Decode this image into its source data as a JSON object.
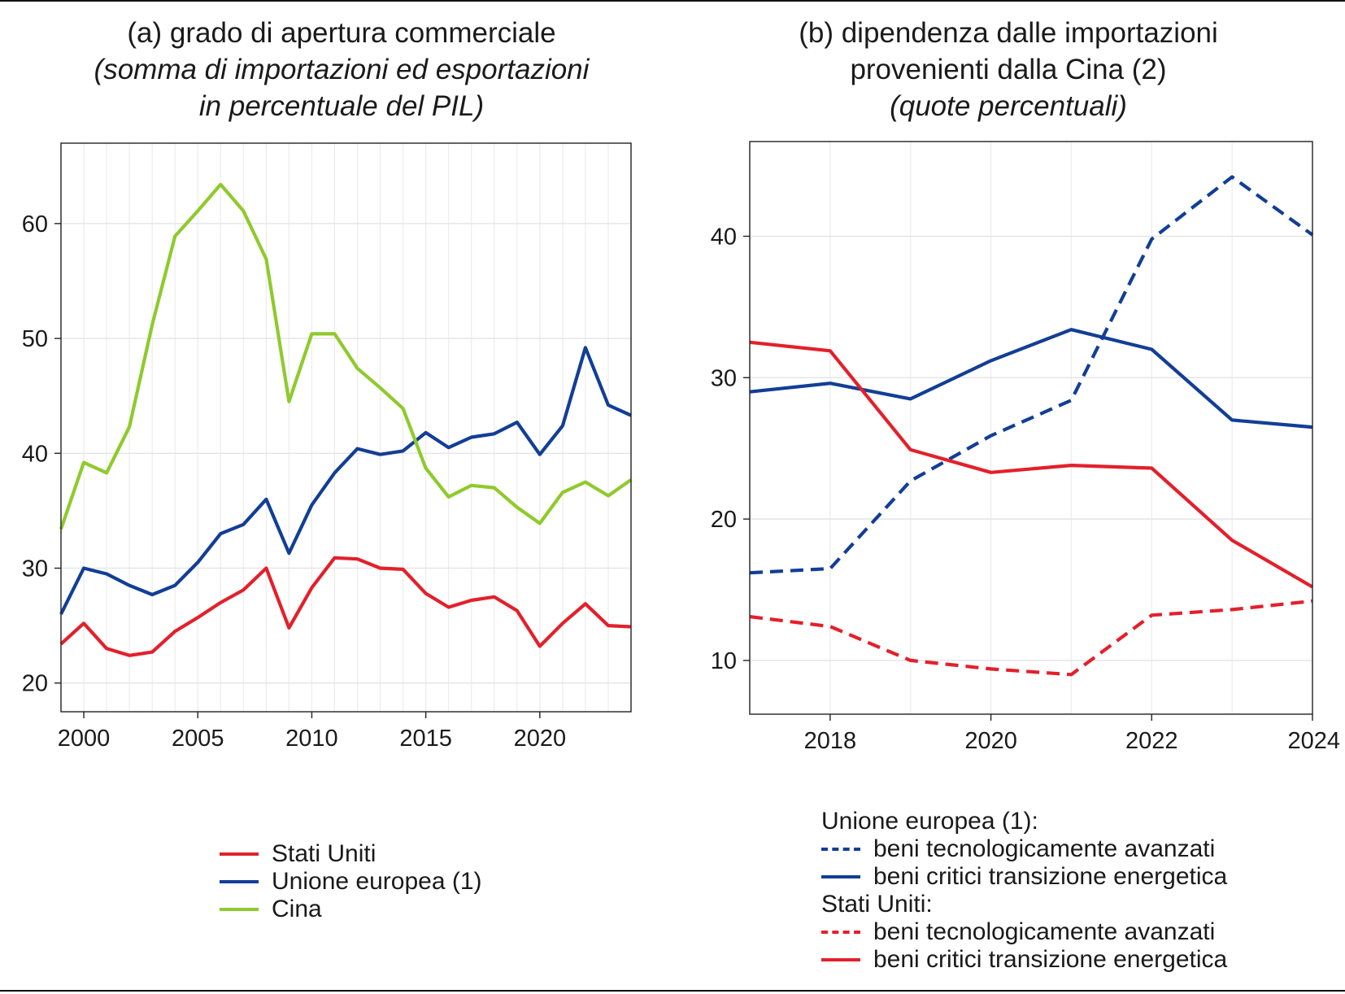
{
  "chart_data": [
    {
      "type": "line",
      "title": "(a) grado di apertura commerciale",
      "subtitle": "(somma di importazioni ed esportazioni in percentuale del PIL)",
      "xlabel": "",
      "ylabel": "",
      "xlim": [
        1999,
        2024
      ],
      "ylim": [
        17.5,
        67
      ],
      "xticks": [
        2000,
        2005,
        2010,
        2015,
        2020
      ],
      "yticks": [
        20,
        30,
        40,
        50,
        60
      ],
      "grid": true,
      "x": [
        1999,
        2000,
        2001,
        2002,
        2003,
        2004,
        2005,
        2006,
        2007,
        2008,
        2009,
        2010,
        2011,
        2012,
        2013,
        2014,
        2015,
        2016,
        2017,
        2018,
        2019,
        2020,
        2021,
        2022,
        2023,
        2024
      ],
      "series": [
        {
          "name": "Stati Uniti",
          "color": "#e3202b",
          "dash": "solid",
          "values": [
            23.4,
            25.2,
            23.0,
            22.4,
            22.7,
            24.5,
            25.7,
            27.0,
            28.1,
            30.0,
            24.8,
            28.3,
            30.9,
            30.8,
            30.0,
            29.9,
            27.8,
            26.6,
            27.2,
            27.5,
            26.3,
            23.2,
            25.2,
            26.9,
            25.0,
            24.9
          ]
        },
        {
          "name": "Unione europea (1)",
          "color": "#123e96",
          "dash": "solid",
          "values": [
            26.0,
            30.0,
            29.5,
            28.5,
            27.7,
            28.5,
            30.5,
            33.0,
            33.8,
            36.0,
            31.3,
            35.5,
            38.3,
            40.4,
            39.9,
            40.2,
            41.8,
            40.5,
            41.4,
            41.7,
            42.7,
            39.9,
            42.4,
            49.2,
            44.2,
            43.3
          ]
        },
        {
          "name": "Cina",
          "color": "#8fca2c",
          "dash": "solid",
          "values": [
            33.4,
            39.2,
            38.3,
            42.3,
            51.2,
            58.9,
            61.1,
            63.4,
            61.1,
            56.9,
            44.5,
            50.4,
            50.4,
            47.4,
            45.7,
            43.9,
            38.7,
            36.2,
            37.2,
            37.0,
            35.3,
            33.9,
            36.6,
            37.5,
            36.3,
            37.7
          ]
        }
      ],
      "legend": [
        "Stati Uniti",
        "Unione europea (1)",
        "Cina"
      ]
    },
    {
      "type": "line",
      "title": "(b) dipendenza dalle importazioni provenienti dalla Cina (2)",
      "subtitle": "(quote percentuali)",
      "xlabel": "",
      "ylabel": "",
      "xlim": [
        2017,
        2024
      ],
      "ylim": [
        6.2,
        46.7
      ],
      "xticks": [
        2018,
        2020,
        2022,
        2024
      ],
      "yticks": [
        10,
        20,
        30,
        40
      ],
      "grid": true,
      "x": [
        2017,
        2018,
        2019,
        2020,
        2021,
        2022,
        2023,
        2024
      ],
      "series": [
        {
          "name": "Unione europea (1): beni tecnologicamente avanzati",
          "color": "#123e96",
          "dash": "dashed",
          "values": [
            16.2,
            16.5,
            22.7,
            25.9,
            28.4,
            39.8,
            44.2,
            40.1
          ]
        },
        {
          "name": "Unione europea (1): beni critici transizione energetica",
          "color": "#123e96",
          "dash": "solid",
          "values": [
            29.0,
            29.6,
            28.5,
            31.2,
            33.4,
            32.0,
            27.0,
            26.5
          ]
        },
        {
          "name": "Stati Uniti: beni tecnologicamente avanzati",
          "color": "#e3202b",
          "dash": "dashed",
          "values": [
            13.1,
            12.4,
            10.0,
            9.4,
            9.0,
            13.2,
            13.6,
            14.2
          ]
        },
        {
          "name": "Stati Uniti: beni critici transizione energetica",
          "color": "#e3202b",
          "dash": "solid",
          "values": [
            32.5,
            31.9,
            24.9,
            23.3,
            23.8,
            23.6,
            18.5,
            15.2
          ]
        }
      ],
      "legend": {
        "groups": [
          {
            "heading": "Unione europea (1):",
            "items": [
              {
                "label": "beni tecnologicamente avanzati",
                "color": "#123e96",
                "dash": "dashed"
              },
              {
                "label": "beni critici transizione energetica",
                "color": "#123e96",
                "dash": "solid"
              }
            ]
          },
          {
            "heading": "Stati Uniti:",
            "items": [
              {
                "label": "beni tecnologicamente avanzati",
                "color": "#e3202b",
                "dash": "dashed"
              },
              {
                "label": "beni critici transizione energetica",
                "color": "#e3202b",
                "dash": "solid"
              }
            ]
          }
        ]
      }
    }
  ],
  "panel_a": {
    "title": "(a) grado di apertura commerciale",
    "subtitle_line1": "(somma di importazioni ed esportazioni",
    "subtitle_line2": "in percentuale del PIL)"
  },
  "panel_b": {
    "title_line1": "(b) dipendenza dalle importazioni",
    "title_line2": "provenienti dalla Cina (2)",
    "subtitle": "(quote percentuali)"
  },
  "legend_a": {
    "items": [
      {
        "label": "Stati Uniti",
        "color": "#e3202b"
      },
      {
        "label": "Unione europea (1)",
        "color": "#123e96"
      },
      {
        "label": "Cina",
        "color": "#8fca2c"
      }
    ]
  },
  "legend_b": {
    "eu_heading": "Unione europea (1):",
    "eu_adv": "beni tecnologicamente avanzati",
    "eu_crit": "beni critici transizione energetica",
    "us_heading": "Stati Uniti:",
    "us_adv": "beni tecnologicamente avanzati",
    "us_crit": "beni critici transizione energetica"
  }
}
